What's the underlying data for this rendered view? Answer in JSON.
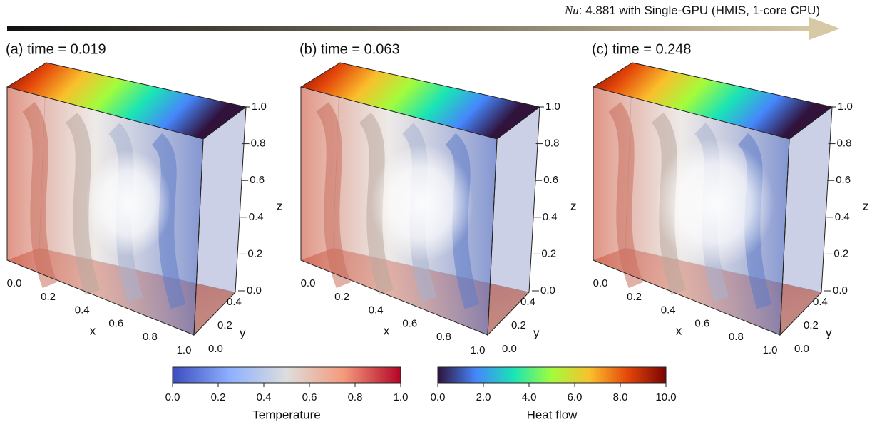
{
  "header": {
    "metric": "Nu",
    "text": ": 4.881 with Single-GPU (HMIS, 1-core CPU)"
  },
  "panels": [
    {
      "title": "(a) time = 0.019"
    },
    {
      "title": "(b) time = 0.063"
    },
    {
      "title": "(c) time = 0.248"
    }
  ],
  "axes": {
    "x": {
      "label": "x",
      "range": [
        0,
        1
      ],
      "ticks": [
        {
          "value": 0,
          "label": "0.0"
        },
        {
          "value": 0.2,
          "label": "0.2"
        },
        {
          "value": 0.4,
          "label": "0.4"
        },
        {
          "value": 0.6,
          "label": "0.6"
        },
        {
          "value": 0.8,
          "label": "0.8"
        },
        {
          "value": 1,
          "label": "1.0"
        }
      ]
    },
    "y": {
      "label": "y",
      "range": [
        0,
        0.4
      ],
      "ticks": [
        {
          "value": 0,
          "label": "0.0"
        },
        {
          "value": 0.2,
          "label": "0.2"
        },
        {
          "value": 0.4,
          "label": "0.4"
        }
      ]
    },
    "z": {
      "label": "z",
      "range": [
        0,
        1
      ],
      "ticks": [
        {
          "value": 0,
          "label": "0.0"
        },
        {
          "value": 0.2,
          "label": "0.2"
        },
        {
          "value": 0.4,
          "label": "0.4"
        },
        {
          "value": 0.6,
          "label": "0.6"
        },
        {
          "value": 0.8,
          "label": "0.8"
        },
        {
          "value": 1,
          "label": "1.0"
        }
      ]
    }
  },
  "colorbars": [
    {
      "label": "Temperature",
      "range": [
        0,
        1
      ],
      "colors": [
        "#3b4cc0",
        "#8db0fe",
        "#dddddd",
        "#f49a7b",
        "#b40426"
      ],
      "ticks": [
        {
          "value": 0,
          "label": "0.0"
        },
        {
          "value": 0.2,
          "label": "0.2"
        },
        {
          "value": 0.4,
          "label": "0.4"
        },
        {
          "value": 0.6,
          "label": "0.6"
        },
        {
          "value": 0.8,
          "label": "0.8"
        },
        {
          "value": 1,
          "label": "1.0"
        }
      ]
    },
    {
      "label": "Heat flow",
      "range": [
        0,
        10
      ],
      "colors": [
        "#30123b",
        "#4686fb",
        "#1ae4b6",
        "#a2fc3c",
        "#fabf2c",
        "#e4460a",
        "#7a0403"
      ],
      "ticks": [
        {
          "value": 0,
          "label": "0.0"
        },
        {
          "value": 2,
          "label": "2.0"
        },
        {
          "value": 4,
          "label": "4.0"
        },
        {
          "value": 6,
          "label": "6.0"
        },
        {
          "value": 8,
          "label": "8.0"
        },
        {
          "value": 10,
          "label": "10.0"
        }
      ]
    }
  ]
}
